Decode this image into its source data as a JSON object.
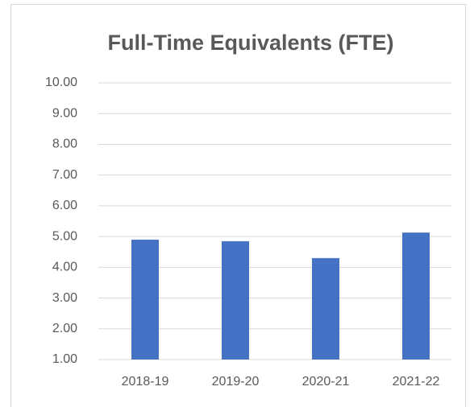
{
  "chart_data": {
    "type": "bar",
    "title": "Full-Time Equivalents (FTE)",
    "categories": [
      "2018-19",
      "2019-20",
      "2020-21",
      "2021-22"
    ],
    "values": [
      4.9,
      4.85,
      4.3,
      5.13
    ],
    "color": "#4472c4",
    "ylim": [
      1,
      10
    ],
    "yticks": [
      {
        "value": 1,
        "label": "1.00"
      },
      {
        "value": 2,
        "label": "2.00"
      },
      {
        "value": 3,
        "label": "3.00"
      },
      {
        "value": 4,
        "label": "4.00"
      },
      {
        "value": 5,
        "label": "5.00"
      },
      {
        "value": 6,
        "label": "6.00"
      },
      {
        "value": 7,
        "label": "7.00"
      },
      {
        "value": 8,
        "label": "8.00"
      },
      {
        "value": 9,
        "label": "9.00"
      },
      {
        "value": 10,
        "label": "10.00"
      }
    ],
    "grid": true
  }
}
